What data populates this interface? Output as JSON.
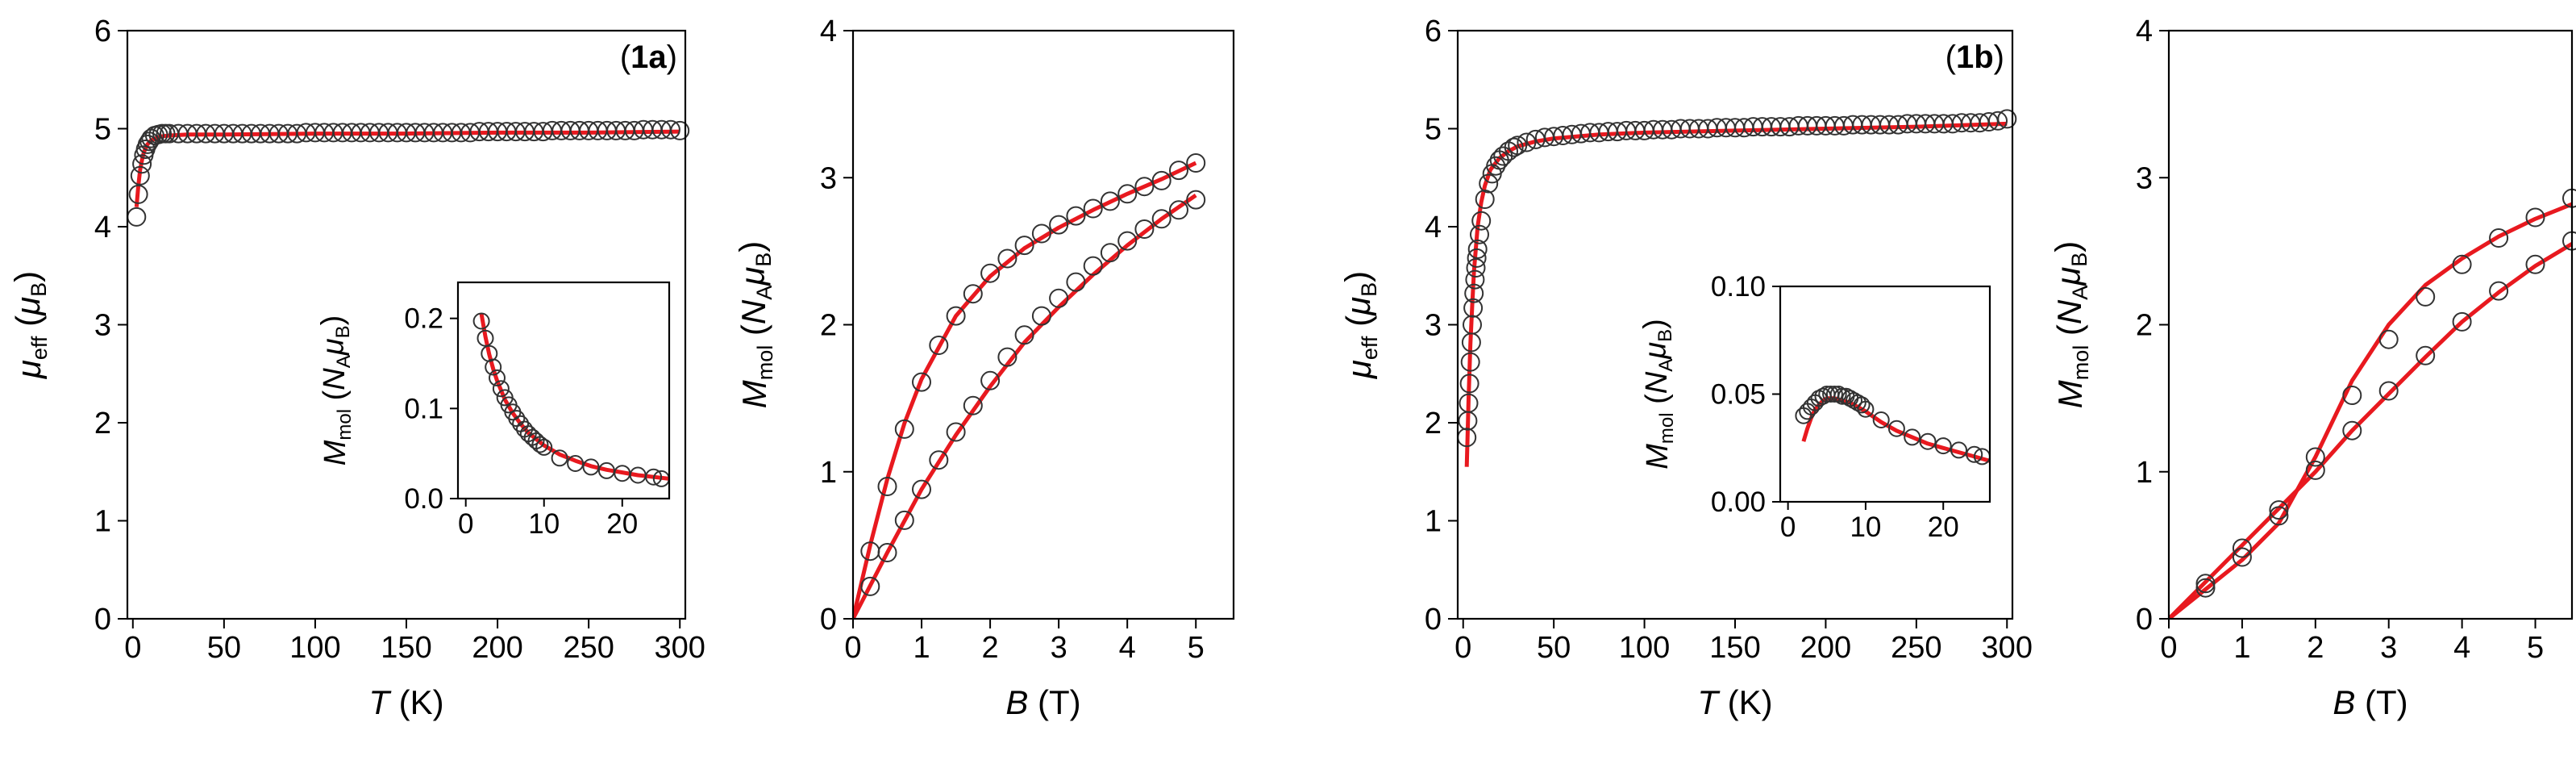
{
  "chart_data": [
    {
      "id": "p1",
      "type": "scatter",
      "panel_label": {
        "pre": "(",
        "bold": "1a",
        "post": ")"
      },
      "xlabel": {
        "main": "T",
        "rest": " (K)"
      },
      "ylabel": {
        "sym": "μ",
        "sub": "eff",
        "rest_open": " (",
        "sym2": "μ",
        "sub2": "B",
        "close": ")"
      },
      "xlim": [
        -3,
        303
      ],
      "ylim": [
        0,
        6
      ],
      "xticks": [
        0,
        50,
        100,
        150,
        200,
        250,
        300
      ],
      "yticks": [
        0,
        1,
        2,
        3,
        4,
        5,
        6
      ],
      "series": [
        {
          "name": "experimental",
          "style": "open-circle",
          "x": [
            2,
            3,
            4,
            5,
            6,
            7,
            8,
            9,
            10,
            12,
            14,
            16,
            18,
            20,
            25,
            30,
            35,
            40,
            45,
            50,
            55,
            60,
            65,
            70,
            75,
            80,
            85,
            90,
            95,
            100,
            105,
            110,
            115,
            120,
            125,
            130,
            135,
            140,
            145,
            150,
            155,
            160,
            165,
            170,
            175,
            180,
            185,
            190,
            195,
            200,
            205,
            210,
            215,
            220,
            225,
            230,
            235,
            240,
            245,
            250,
            255,
            260,
            265,
            270,
            275,
            280,
            285,
            290,
            295,
            300
          ],
          "y": [
            4.1,
            4.33,
            4.52,
            4.64,
            4.73,
            4.79,
            4.84,
            4.87,
            4.9,
            4.93,
            4.94,
            4.95,
            4.95,
            4.95,
            4.95,
            4.95,
            4.95,
            4.95,
            4.95,
            4.95,
            4.95,
            4.95,
            4.95,
            4.95,
            4.95,
            4.95,
            4.95,
            4.95,
            4.96,
            4.96,
            4.96,
            4.96,
            4.96,
            4.96,
            4.96,
            4.96,
            4.96,
            4.96,
            4.96,
            4.96,
            4.96,
            4.96,
            4.96,
            4.96,
            4.96,
            4.96,
            4.96,
            4.97,
            4.97,
            4.97,
            4.97,
            4.97,
            4.97,
            4.97,
            4.97,
            4.98,
            4.98,
            4.98,
            4.98,
            4.98,
            4.98,
            4.98,
            4.98,
            4.98,
            4.98,
            4.99,
            4.99,
            4.99,
            4.99,
            4.98
          ]
        },
        {
          "name": "fit",
          "style": "red-line",
          "x": [
            2,
            3,
            4,
            5,
            6,
            8,
            10,
            15,
            20,
            30,
            50,
            100,
            150,
            200,
            250,
            300
          ],
          "y": [
            4.2,
            4.42,
            4.58,
            4.68,
            4.76,
            4.84,
            4.88,
            4.92,
            4.93,
            4.94,
            4.94,
            4.95,
            4.95,
            4.96,
            4.96,
            4.97
          ]
        }
      ],
      "inset": {
        "xlabel": "",
        "ylabel": {
          "sym": "M",
          "sub": "mol",
          "rest_open": " (",
          "sym2": "N",
          "sub2": "A",
          "sym3": "μ",
          "sub3": "B",
          "close": ")"
        },
        "xlim": [
          -1,
          26
        ],
        "ylim": [
          0,
          0.24
        ],
        "xticks": [
          0,
          10,
          20
        ],
        "yticks": [
          0.0,
          0.1,
          0.2
        ],
        "ytick_labels": [
          "0.0",
          "0.1",
          "0.2"
        ],
        "series": [
          {
            "name": "experimental",
            "style": "open-circle",
            "x": [
              2,
              2.5,
              3,
              3.5,
              4,
              4.5,
              5,
              5.5,
              6,
              6.5,
              7,
              7.5,
              8,
              8.5,
              9,
              9.5,
              10,
              12,
              14,
              16,
              18,
              20,
              22,
              24,
              25
            ],
            "y": [
              0.197,
              0.178,
              0.161,
              0.146,
              0.134,
              0.122,
              0.112,
              0.104,
              0.096,
              0.089,
              0.083,
              0.077,
              0.072,
              0.068,
              0.064,
              0.06,
              0.057,
              0.045,
              0.039,
              0.035,
              0.031,
              0.028,
              0.026,
              0.024,
              0.022
            ]
          },
          {
            "name": "fit",
            "style": "red-line",
            "x": [
              2,
              2.5,
              3,
              3.5,
              4,
              5,
              6,
              7,
              8,
              9,
              10,
              12,
              14,
              16,
              18,
              20,
              22,
              24,
              26
            ],
            "y": [
              0.205,
              0.18,
              0.16,
              0.144,
              0.131,
              0.11,
              0.095,
              0.083,
              0.073,
              0.066,
              0.059,
              0.049,
              0.042,
              0.036,
              0.032,
              0.029,
              0.026,
              0.024,
              0.022
            ]
          }
        ]
      }
    },
    {
      "id": "p2",
      "type": "scatter",
      "xlabel": {
        "main": "B",
        "rest": " (T)"
      },
      "ylabel": {
        "sym": "M",
        "sub": "mol",
        "rest_open": " (",
        "sym2": "N",
        "sub2": "A",
        "sym3": "μ",
        "sub3": "B",
        "close": ")"
      },
      "xlim": [
        0,
        5.55
      ],
      "ylim": [
        0,
        4
      ],
      "xticks": [
        0,
        1,
        2,
        3,
        4,
        5
      ],
      "yticks": [
        0,
        1,
        2,
        3,
        4
      ],
      "series": [
        {
          "name": "upper-experimental",
          "style": "open-circle",
          "x": [
            0.25,
            0.5,
            0.75,
            1.0,
            1.25,
            1.5,
            1.75,
            2.0,
            2.25,
            2.5,
            2.75,
            3.0,
            3.25,
            3.5,
            3.75,
            4.0,
            4.25,
            4.5,
            4.75,
            5.0
          ],
          "y": [
            0.46,
            0.9,
            1.29,
            1.61,
            1.86,
            2.06,
            2.21,
            2.35,
            2.45,
            2.54,
            2.62,
            2.68,
            2.74,
            2.79,
            2.84,
            2.89,
            2.94,
            2.98,
            3.05,
            3.1
          ]
        },
        {
          "name": "lower-experimental",
          "style": "open-circle",
          "x": [
            0.25,
            0.5,
            0.75,
            1.0,
            1.25,
            1.5,
            1.75,
            2.0,
            2.25,
            2.5,
            2.75,
            3.0,
            3.25,
            3.5,
            3.75,
            4.0,
            4.25,
            4.5,
            4.75,
            5.0
          ],
          "y": [
            0.22,
            0.45,
            0.67,
            0.88,
            1.08,
            1.27,
            1.45,
            1.62,
            1.78,
            1.93,
            2.06,
            2.18,
            2.29,
            2.4,
            2.49,
            2.57,
            2.65,
            2.72,
            2.78,
            2.85
          ]
        },
        {
          "name": "upper-fit",
          "style": "red-line",
          "x": [
            0,
            0.25,
            0.5,
            0.75,
            1.0,
            1.5,
            2.0,
            2.5,
            3.0,
            3.5,
            4.0,
            4.5,
            5.0
          ],
          "y": [
            0,
            0.5,
            0.95,
            1.33,
            1.63,
            2.06,
            2.33,
            2.52,
            2.66,
            2.78,
            2.89,
            2.99,
            3.1
          ]
        },
        {
          "name": "lower-fit",
          "style": "red-line",
          "x": [
            0,
            0.5,
            1.0,
            1.5,
            2.0,
            2.5,
            3.0,
            3.5,
            4.0,
            4.5,
            5.0
          ],
          "y": [
            0,
            0.45,
            0.88,
            1.25,
            1.58,
            1.88,
            2.12,
            2.34,
            2.54,
            2.72,
            2.88
          ]
        }
      ]
    },
    {
      "id": "p3",
      "type": "scatter",
      "panel_label": {
        "pre": "(",
        "bold": "1b",
        "post": ")"
      },
      "xlabel": {
        "main": "T",
        "rest": " (K)"
      },
      "ylabel": {
        "sym": "μ",
        "sub": "eff",
        "rest_open": " (",
        "sym2": "μ",
        "sub2": "B",
        "close": ")"
      },
      "xlim": [
        -3,
        303
      ],
      "ylim": [
        0,
        6
      ],
      "xticks": [
        0,
        50,
        100,
        150,
        200,
        250,
        300
      ],
      "yticks": [
        0,
        1,
        2,
        3,
        4,
        5,
        6
      ],
      "series": [
        {
          "name": "experimental",
          "style": "open-circle",
          "x": [
            2,
            2.5,
            3,
            3.5,
            4,
            4.5,
            5,
            5.5,
            6,
            6.5,
            7,
            7.5,
            8,
            9,
            10,
            12,
            14,
            16,
            18,
            20,
            22,
            25,
            28,
            30,
            35,
            40,
            45,
            50,
            55,
            60,
            65,
            70,
            75,
            80,
            85,
            90,
            95,
            100,
            105,
            110,
            115,
            120,
            125,
            130,
            135,
            140,
            145,
            150,
            155,
            160,
            165,
            170,
            175,
            180,
            185,
            190,
            195,
            200,
            205,
            210,
            215,
            220,
            225,
            230,
            235,
            240,
            245,
            250,
            255,
            260,
            265,
            270,
            275,
            280,
            285,
            290,
            295,
            300
          ],
          "y": [
            1.85,
            2.02,
            2.2,
            2.4,
            2.62,
            2.82,
            3.0,
            3.17,
            3.32,
            3.46,
            3.58,
            3.68,
            3.77,
            3.92,
            4.06,
            4.28,
            4.44,
            4.54,
            4.62,
            4.68,
            4.72,
            4.77,
            4.81,
            4.83,
            4.86,
            4.89,
            4.91,
            4.92,
            4.93,
            4.94,
            4.95,
            4.96,
            4.96,
            4.97,
            4.97,
            4.98,
            4.98,
            4.98,
            4.99,
            4.99,
            4.99,
            5.0,
            5.0,
            5.0,
            5.0,
            5.01,
            5.01,
            5.01,
            5.01,
            5.02,
            5.02,
            5.02,
            5.02,
            5.02,
            5.03,
            5.03,
            5.03,
            5.03,
            5.03,
            5.03,
            5.04,
            5.04,
            5.04,
            5.04,
            5.04,
            5.04,
            5.05,
            5.05,
            5.05,
            5.05,
            5.05,
            5.05,
            5.06,
            5.06,
            5.06,
            5.07,
            5.08,
            5.1
          ]
        },
        {
          "name": "fit",
          "style": "red-line",
          "x": [
            2,
            3,
            4,
            5,
            6,
            8,
            10,
            12,
            15,
            20,
            25,
            30,
            40,
            50,
            75,
            100,
            150,
            200,
            250,
            300
          ],
          "y": [
            1.55,
            2.25,
            2.8,
            3.2,
            3.55,
            4.0,
            4.25,
            4.42,
            4.58,
            4.7,
            4.77,
            4.82,
            4.87,
            4.9,
            4.94,
            4.96,
            4.98,
            5.0,
            5.02,
            5.05
          ]
        }
      ],
      "inset": {
        "xlabel": "",
        "ylabel": {
          "sym": "M",
          "sub": "mol",
          "rest_open": " (",
          "sym2": "N",
          "sub2": "A",
          "sym3": "μ",
          "sub3": "B",
          "close": ")"
        },
        "xlim": [
          -1,
          26
        ],
        "ylim": [
          0,
          0.1
        ],
        "xticks": [
          0,
          10,
          20
        ],
        "yticks": [
          0.0,
          0.05,
          0.1
        ],
        "ytick_labels": [
          "0.00",
          "0.05",
          "0.10"
        ],
        "series": [
          {
            "name": "experimental",
            "style": "open-circle",
            "x": [
              2,
              2.5,
              3,
              3.5,
              4,
              4.5,
              5,
              5.5,
              6,
              6.5,
              7,
              7.5,
              8,
              8.5,
              9,
              9.5,
              10,
              12,
              14,
              16,
              18,
              20,
              22,
              24,
              25
            ],
            "y": [
              0.04,
              0.042,
              0.044,
              0.046,
              0.048,
              0.049,
              0.05,
              0.05,
              0.05,
              0.05,
              0.049,
              0.049,
              0.048,
              0.047,
              0.046,
              0.045,
              0.043,
              0.038,
              0.034,
              0.03,
              0.028,
              0.026,
              0.024,
              0.022,
              0.021
            ]
          },
          {
            "name": "fit",
            "style": "red-line",
            "x": [
              2,
              2.5,
              3,
              3.5,
              4,
              4.5,
              5,
              5.5,
              6,
              7,
              8,
              9,
              10,
              12,
              14,
              16,
              18,
              20,
              22,
              24,
              26
            ],
            "y": [
              0.028,
              0.034,
              0.039,
              0.043,
              0.045,
              0.047,
              0.048,
              0.048,
              0.048,
              0.047,
              0.046,
              0.044,
              0.042,
              0.037,
              0.033,
              0.03,
              0.027,
              0.025,
              0.023,
              0.021,
              0.019
            ]
          }
        ]
      }
    },
    {
      "id": "p4",
      "type": "scatter",
      "xlabel": {
        "main": "B",
        "rest": " (T)"
      },
      "ylabel": {
        "sym": "M",
        "sub": "mol",
        "rest_open": " (",
        "sym2": "N",
        "sub2": "A",
        "sym3": "μ",
        "sub3": "B",
        "close": ")"
      },
      "xlim": [
        0,
        5.5
      ],
      "ylim": [
        0,
        4
      ],
      "xticks": [
        0,
        1,
        2,
        3,
        4,
        5
      ],
      "yticks": [
        0,
        1,
        2,
        3,
        4
      ],
      "series": [
        {
          "name": "upper-experimental",
          "style": "open-circle",
          "x": [
            0.5,
            1.0,
            1.5,
            2.0,
            2.5,
            3.0,
            3.5,
            4.0,
            4.5,
            5.0,
            5.5
          ],
          "y": [
            0.24,
            0.48,
            0.74,
            1.1,
            1.52,
            1.9,
            2.19,
            2.41,
            2.59,
            2.73,
            2.86
          ]
        },
        {
          "name": "lower-experimental",
          "style": "open-circle",
          "x": [
            0.5,
            1.0,
            1.5,
            2.0,
            2.5,
            3.0,
            3.5,
            4.0,
            4.5,
            5.0,
            5.5
          ],
          "y": [
            0.21,
            0.42,
            0.7,
            1.01,
            1.28,
            1.55,
            1.79,
            2.02,
            2.23,
            2.41,
            2.57
          ]
        },
        {
          "name": "upper-fit",
          "style": "red-line",
          "x": [
            0,
            0.5,
            1.0,
            1.5,
            2.0,
            2.5,
            3.0,
            3.5,
            4.0,
            4.5,
            5.0,
            5.5
          ],
          "y": [
            0,
            0.2,
            0.4,
            0.65,
            1.1,
            1.62,
            2.0,
            2.27,
            2.45,
            2.6,
            2.72,
            2.82
          ]
        },
        {
          "name": "lower-fit",
          "style": "red-line",
          "x": [
            0,
            0.5,
            1.0,
            1.5,
            2.0,
            2.5,
            3.0,
            3.5,
            4.0,
            4.5,
            5.0,
            5.5
          ],
          "y": [
            0,
            0.25,
            0.5,
            0.75,
            1.0,
            1.28,
            1.53,
            1.78,
            2.02,
            2.22,
            2.4,
            2.55
          ]
        }
      ]
    }
  ]
}
